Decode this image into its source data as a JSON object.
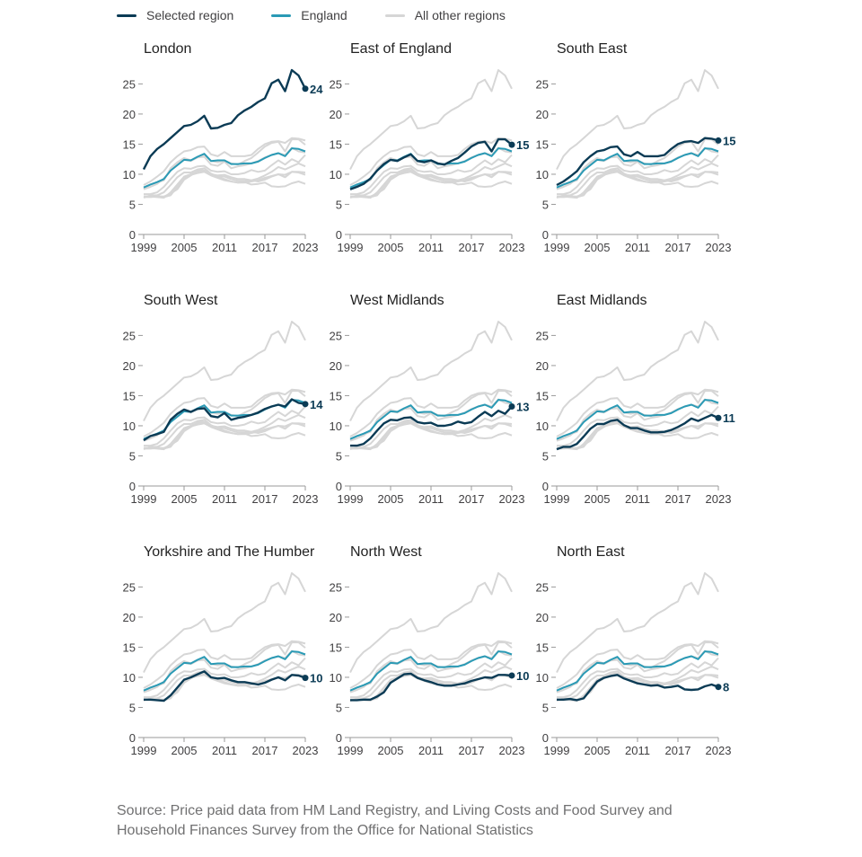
{
  "legend": {
    "items": [
      {
        "label": "Selected region",
        "color": "#0b3b55"
      },
      {
        "label": "England",
        "color": "#2a9ab5"
      },
      {
        "label": "All other regions",
        "color": "#d6d6d6"
      }
    ]
  },
  "source": "Source: Price paid data from HM Land Registry, and Living Costs and Food Survey and Household Finances Survey from the Office for National Statistics",
  "colors": {
    "selected": "#0b3b55",
    "england": "#2a9ab5",
    "other": "#d6d6d6",
    "axis": "#9a9a9a",
    "tick_text": "#414042"
  },
  "chart_data": {
    "type": "line",
    "x_ticks": [
      1999,
      2005,
      2011,
      2017,
      2023
    ],
    "y_ticks": [
      0,
      5,
      10,
      15,
      20,
      25
    ],
    "xlim": [
      1999,
      2023
    ],
    "ylim": [
      0,
      27
    ],
    "x": [
      1999,
      2000,
      2001,
      2002,
      2003,
      2004,
      2005,
      2006,
      2007,
      2008,
      2009,
      2010,
      2011,
      2012,
      2013,
      2014,
      2015,
      2016,
      2017,
      2018,
      2019,
      2020,
      2021,
      2022,
      2023
    ],
    "england": [
      7.8,
      8.3,
      8.7,
      9.2,
      10.6,
      11.5,
      12.4,
      12.3,
      12.9,
      13.4,
      12.2,
      12.3,
      12.3,
      11.7,
      11.7,
      11.8,
      11.8,
      12.1,
      12.7,
      13.2,
      13.5,
      13.0,
      14.3,
      14.2,
      13.8
    ],
    "panels": [
      {
        "title": "London",
        "end_label": "24",
        "values": [
          10.8,
          13.0,
          14.2,
          15.0,
          16.0,
          17.0,
          18.0,
          18.2,
          18.8,
          19.7,
          17.6,
          17.7,
          18.2,
          18.5,
          19.8,
          20.6,
          21.2,
          22.0,
          22.6,
          25.1,
          25.7,
          23.8,
          27.3,
          26.4,
          24.2
        ]
      },
      {
        "title": "East of England",
        "end_label": "15",
        "values": [
          7.5,
          7.9,
          8.4,
          9.3,
          10.6,
          11.7,
          12.4,
          12.2,
          12.8,
          13.3,
          12.2,
          12.0,
          12.3,
          11.8,
          11.6,
          12.2,
          12.7,
          13.6,
          14.6,
          15.2,
          15.4,
          13.8,
          15.8,
          15.8,
          14.9
        ]
      },
      {
        "title": "South East",
        "end_label": "15",
        "values": [
          8.2,
          8.8,
          9.6,
          10.5,
          12.0,
          13.0,
          13.8,
          14.0,
          14.5,
          14.6,
          13.3,
          13.0,
          13.7,
          13.0,
          13.0,
          13.0,
          13.2,
          14.2,
          15.0,
          15.4,
          15.5,
          15.2,
          16.0,
          15.9,
          15.6
        ]
      },
      {
        "title": "South West",
        "end_label": "14",
        "values": [
          7.6,
          8.3,
          8.6,
          9.0,
          11.0,
          12.0,
          12.7,
          12.3,
          12.8,
          12.9,
          11.6,
          11.4,
          12.1,
          11.0,
          11.3,
          11.5,
          11.8,
          12.2,
          12.8,
          13.2,
          13.5,
          13.2,
          14.4,
          13.8,
          13.6
        ]
      },
      {
        "title": "West Midlands",
        "end_label": "13",
        "values": [
          6.7,
          6.7,
          7.0,
          7.9,
          9.2,
          10.4,
          11.0,
          10.9,
          11.3,
          11.4,
          10.6,
          10.4,
          10.5,
          10.0,
          10.0,
          10.2,
          10.7,
          10.4,
          10.6,
          11.5,
          12.3,
          11.6,
          12.5,
          12.0,
          13.2
        ]
      },
      {
        "title": "East Midlands",
        "end_label": "11",
        "values": [
          6.1,
          6.5,
          6.5,
          7.0,
          8.2,
          9.5,
          10.3,
          10.3,
          10.8,
          11.0,
          10.1,
          9.6,
          9.6,
          9.2,
          8.9,
          8.9,
          9.0,
          9.3,
          9.8,
          10.4,
          11.2,
          10.8,
          11.3,
          11.8,
          11.3
        ]
      },
      {
        "title": "Yorkshire and The Humber",
        "end_label": "10",
        "values": [
          6.3,
          6.3,
          6.2,
          6.1,
          7.0,
          8.3,
          9.6,
          10.0,
          10.5,
          11.0,
          10.0,
          9.8,
          9.9,
          9.5,
          9.2,
          9.2,
          9.0,
          8.8,
          9.1,
          9.6,
          10.0,
          9.5,
          10.4,
          10.3,
          9.9
        ]
      },
      {
        "title": "North West",
        "end_label": "10",
        "values": [
          6.2,
          6.2,
          6.3,
          6.3,
          6.8,
          7.5,
          9.1,
          9.8,
          10.5,
          10.6,
          9.9,
          9.5,
          9.2,
          8.8,
          8.6,
          8.6,
          8.8,
          9.0,
          9.4,
          9.7,
          10.0,
          9.9,
          10.4,
          10.4,
          10.3
        ]
      },
      {
        "title": "North East",
        "end_label": "8",
        "values": [
          6.3,
          6.3,
          6.4,
          6.2,
          6.5,
          7.9,
          9.3,
          9.9,
          10.2,
          10.4,
          9.8,
          9.4,
          9.0,
          8.8,
          8.6,
          8.7,
          8.3,
          8.4,
          8.6,
          8.0,
          7.9,
          8.0,
          8.5,
          8.8,
          8.4
        ]
      }
    ]
  }
}
